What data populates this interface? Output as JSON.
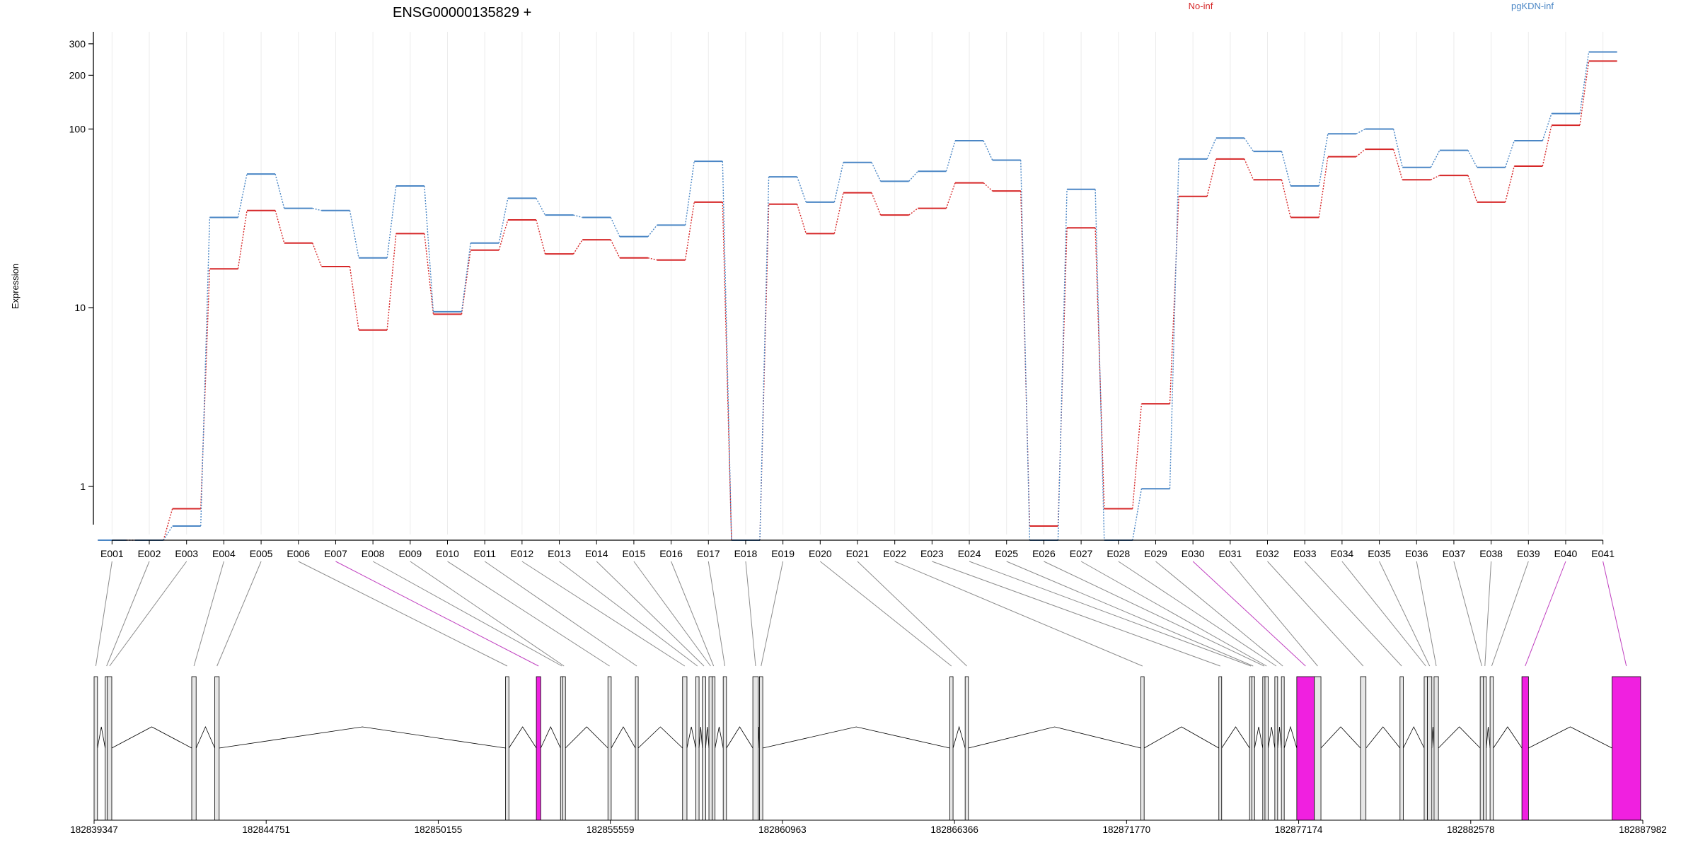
{
  "chart_data": {
    "type": "line",
    "title": "ENSG00000135829 +",
    "ylabel": "Expression",
    "yscale": "log",
    "ylim": [
      0.5,
      350
    ],
    "yticks": [
      {
        "value": 1,
        "label": "1"
      },
      {
        "value": 10,
        "label": "10"
      },
      {
        "value": 100,
        "label": "100"
      },
      {
        "value": 200,
        "label": "200"
      },
      {
        "value": 300,
        "label": "300"
      }
    ],
    "grid": "vertical",
    "legend_position": "top",
    "categories": [
      "E001",
      "E002",
      "E003",
      "E004",
      "E005",
      "E006",
      "E007",
      "E008",
      "E009",
      "E010",
      "E011",
      "E012",
      "E013",
      "E014",
      "E015",
      "E016",
      "E017",
      "E018",
      "E019",
      "E020",
      "E021",
      "E022",
      "E023",
      "E024",
      "E025",
      "E026",
      "E027",
      "E028",
      "E029",
      "E030",
      "E031",
      "E032",
      "E033",
      "E034",
      "E035",
      "E036",
      "E037",
      "E038",
      "E039",
      "E040",
      "E041"
    ],
    "series": [
      {
        "name": "No-inf",
        "color": "#d62728",
        "values": [
          0.5,
          0.5,
          0.75,
          16.5,
          35,
          23,
          17,
          7.5,
          26,
          9.2,
          21,
          31,
          20,
          24,
          19,
          18.5,
          39,
          0.5,
          38,
          26,
          44,
          33,
          36,
          50,
          45,
          0.6,
          28,
          0.75,
          2.9,
          42,
          68,
          52,
          32,
          70,
          77,
          52,
          55,
          39,
          62,
          105,
          240
        ]
      },
      {
        "name": "pgKDN-inf",
        "color": "#4a86c5",
        "values": [
          0.5,
          0.5,
          0.6,
          32,
          56,
          36,
          35,
          19,
          48,
          9.5,
          23,
          41,
          33,
          32,
          25,
          29,
          66,
          0.5,
          54,
          39,
          65,
          51,
          58,
          86,
          67,
          0.5,
          46,
          0.5,
          0.97,
          68,
          89,
          75,
          48,
          94,
          100,
          61,
          76,
          61,
          86,
          122,
          270
        ]
      }
    ],
    "gene_model": {
      "axis_ticks": [
        "182839347",
        "182844751",
        "182850155",
        "182855559",
        "182860963",
        "182866366",
        "182871770",
        "182877174",
        "182882578",
        "182887982"
      ],
      "axis_start": 182839347,
      "axis_end": 182887982,
      "exons": [
        {
          "id": "E001",
          "start": 182839347,
          "end": 182839454,
          "highlight": false
        },
        {
          "id": "E002",
          "start": 182839695,
          "end": 182839764,
          "highlight": false
        },
        {
          "id": "E003",
          "start": 182839764,
          "end": 182839902,
          "highlight": false
        },
        {
          "id": "E004",
          "start": 182842413,
          "end": 182842551,
          "highlight": false
        },
        {
          "id": "E005",
          "start": 182843137,
          "end": 182843275,
          "highlight": false
        },
        {
          "id": "E006",
          "start": 182852269,
          "end": 182852373,
          "highlight": false
        },
        {
          "id": "E007",
          "start": 182853235,
          "end": 182853373,
          "highlight": true
        },
        {
          "id": "E008",
          "start": 182853994,
          "end": 182854060,
          "highlight": false
        },
        {
          "id": "E009",
          "start": 182854060,
          "end": 182854132,
          "highlight": false
        },
        {
          "id": "E010",
          "start": 182855483,
          "end": 182855586,
          "highlight": false
        },
        {
          "id": "E011",
          "start": 182856345,
          "end": 182856379,
          "highlight": false
        },
        {
          "id": "E012",
          "start": 182857827,
          "end": 182857965,
          "highlight": false
        },
        {
          "id": "E013",
          "start": 182858241,
          "end": 182858345,
          "highlight": false
        },
        {
          "id": "E014",
          "start": 182858448,
          "end": 182858552,
          "highlight": false
        },
        {
          "id": "E015",
          "start": 182858655,
          "end": 182858759,
          "highlight": false
        },
        {
          "id": "E016",
          "start": 182858758,
          "end": 182858827,
          "highlight": false
        },
        {
          "id": "E017",
          "start": 182859103,
          "end": 182859206,
          "highlight": false
        },
        {
          "id": "E018",
          "start": 182860034,
          "end": 182860207,
          "highlight": false
        },
        {
          "id": "E019",
          "start": 182860241,
          "end": 182860345,
          "highlight": false
        },
        {
          "id": "E020",
          "start": 182866218,
          "end": 182866321,
          "highlight": false
        },
        {
          "id": "E021",
          "start": 182866701,
          "end": 182866804,
          "highlight": false
        },
        {
          "id": "E022",
          "start": 182872219,
          "end": 182872322,
          "highlight": false
        },
        {
          "id": "E023",
          "start": 182874668,
          "end": 182874737,
          "highlight": false
        },
        {
          "id": "E024",
          "start": 182875633,
          "end": 182875702,
          "highlight": false
        },
        {
          "id": "E025",
          "start": 182875702,
          "end": 182875771,
          "highlight": false
        },
        {
          "id": "E026",
          "start": 182876047,
          "end": 182876116,
          "highlight": false
        },
        {
          "id": "E027",
          "start": 182876116,
          "end": 182876220,
          "highlight": false
        },
        {
          "id": "E028",
          "start": 182876426,
          "end": 182876495,
          "highlight": false
        },
        {
          "id": "E029",
          "start": 182876632,
          "end": 182876701,
          "highlight": false
        },
        {
          "id": "E030",
          "start": 182877115,
          "end": 182877667,
          "highlight": true
        },
        {
          "id": "E031",
          "start": 182877667,
          "end": 182877874,
          "highlight": false
        },
        {
          "id": "E032",
          "start": 182879116,
          "end": 182879288,
          "highlight": false
        },
        {
          "id": "E033",
          "start": 182880357,
          "end": 182880460,
          "highlight": false
        },
        {
          "id": "E034",
          "start": 182881116,
          "end": 182881219,
          "highlight": false
        },
        {
          "id": "E035",
          "start": 182881219,
          "end": 182881357,
          "highlight": false
        },
        {
          "id": "E036",
          "start": 182881426,
          "end": 182881564,
          "highlight": false
        },
        {
          "id": "E037",
          "start": 182882875,
          "end": 182882978,
          "highlight": false
        },
        {
          "id": "E038",
          "start": 182882978,
          "end": 182883047,
          "highlight": false
        },
        {
          "id": "E039",
          "start": 182883185,
          "end": 182883288,
          "highlight": false
        },
        {
          "id": "E040",
          "start": 182884185,
          "end": 182884391,
          "highlight": true
        },
        {
          "id": "E041",
          "start": 182887016,
          "end": 182887913,
          "highlight": true
        }
      ]
    }
  }
}
